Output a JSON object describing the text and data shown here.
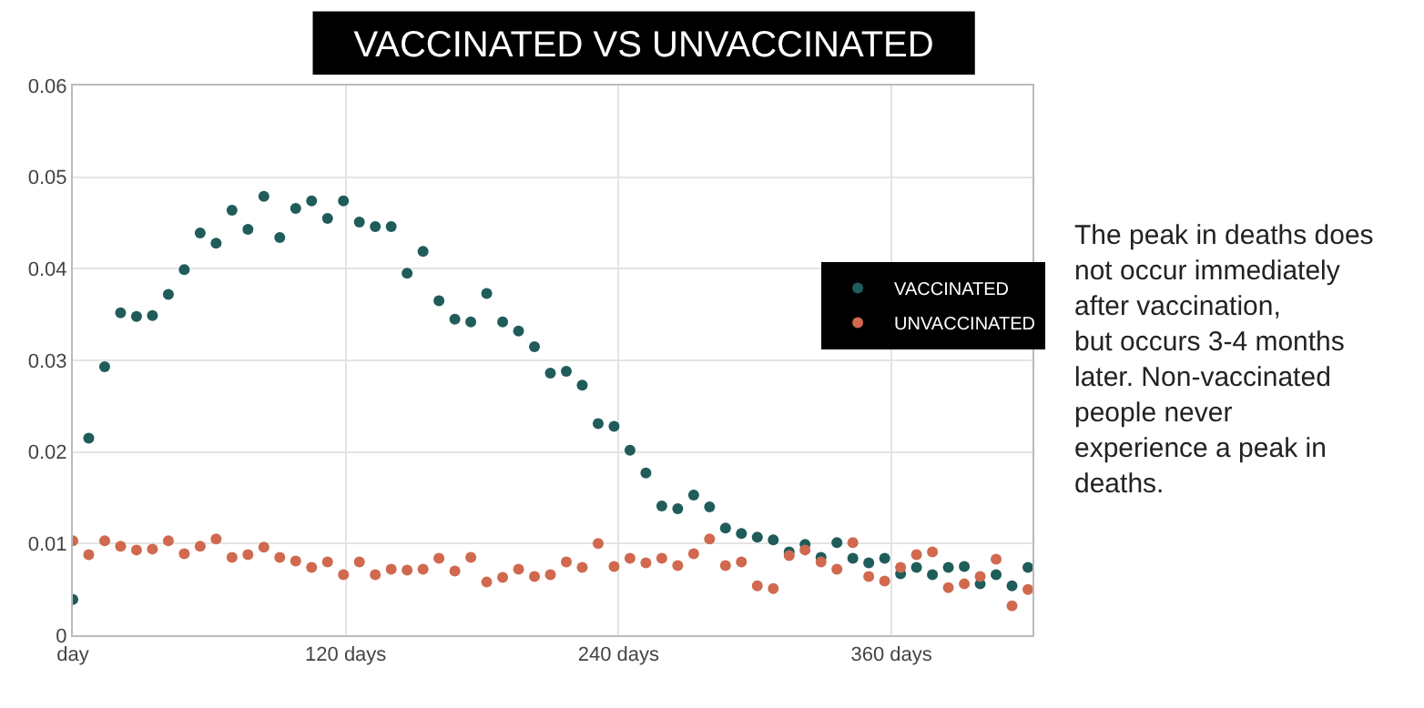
{
  "chart_data": {
    "type": "scatter",
    "title": "VACCINATED VS UNVACCINATED",
    "x": [
      0,
      7,
      14,
      21,
      28,
      35,
      42,
      49,
      56,
      63,
      70,
      77,
      84,
      91,
      98,
      105,
      112,
      119,
      126,
      133,
      140,
      147,
      154,
      161,
      168,
      175,
      182,
      189,
      196,
      203,
      210,
      217,
      224,
      231,
      238,
      245,
      252,
      259,
      266,
      273,
      280,
      287,
      294,
      301,
      308,
      315,
      322,
      329,
      336,
      343,
      350,
      357,
      364,
      371,
      378,
      385,
      392,
      399,
      406,
      413,
      420
    ],
    "series": [
      {
        "name": "VACCINATED",
        "color": "#1f5c5a",
        "values": [
          0.0039,
          0.0215,
          0.0293,
          0.0352,
          0.0348,
          0.0349,
          0.0372,
          0.0399,
          0.0439,
          0.0428,
          0.0464,
          0.0443,
          0.0479,
          0.0434,
          0.0466,
          0.0474,
          0.0455,
          0.0474,
          0.0451,
          0.0446,
          0.0446,
          0.0395,
          0.0419,
          0.0365,
          0.0345,
          0.0342,
          0.0373,
          0.0342,
          0.0332,
          0.0315,
          0.0286,
          0.0288,
          0.0273,
          0.0231,
          0.0228,
          0.0202,
          0.0177,
          0.0141,
          0.0138,
          0.0153,
          0.014,
          0.0117,
          0.0111,
          0.0107,
          0.0104,
          0.0091,
          0.0099,
          0.0085,
          0.0101,
          0.0084,
          0.0079,
          0.0084,
          0.0067,
          0.0074,
          0.0066,
          0.0074,
          0.0075,
          0.0056,
          0.0066,
          0.0054,
          0.0074
        ]
      },
      {
        "name": "UNVACCINATED",
        "color": "#d0694e",
        "values": [
          0.0103,
          0.0088,
          0.0103,
          0.0097,
          0.0093,
          0.0094,
          0.0103,
          0.0089,
          0.0097,
          0.0105,
          0.0085,
          0.0088,
          0.0096,
          0.0085,
          0.0081,
          0.0074,
          0.008,
          0.0066,
          0.008,
          0.0066,
          0.0072,
          0.0071,
          0.0072,
          0.0084,
          0.007,
          0.0085,
          0.0058,
          0.0063,
          0.0072,
          0.0064,
          0.0066,
          0.008,
          0.0074,
          0.01,
          0.0075,
          0.0084,
          0.0079,
          0.0084,
          0.0076,
          0.0089,
          0.0105,
          0.0076,
          0.008,
          0.0054,
          0.0051,
          0.0087,
          0.0093,
          0.008,
          0.0072,
          0.0101,
          0.0064,
          0.0059,
          0.0074,
          0.0088,
          0.0091,
          0.0052,
          0.0056,
          0.0064,
          0.0083,
          0.0032,
          0.005
        ]
      }
    ],
    "xlim": [
      0,
      422
    ],
    "xticks": [
      {
        "value": 0,
        "label": "day"
      },
      {
        "value": 120,
        "label": "120 days"
      },
      {
        "value": 240,
        "label": "240 days"
      },
      {
        "value": 360,
        "label": "360 days"
      }
    ],
    "ylim": [
      0,
      0.06
    ],
    "yticks": [
      0,
      0.01,
      0.02,
      0.03,
      0.04,
      0.05,
      0.06
    ],
    "grid": true,
    "legend": "right",
    "marker": "circle",
    "annotations": [
      "The peak in deaths does\nnot occur immediately\nafter vaccination,\nbut occurs 3-4 months\nlater. Non-vaccinated\npeople never\nexperience a peak in\ndeaths."
    ]
  }
}
